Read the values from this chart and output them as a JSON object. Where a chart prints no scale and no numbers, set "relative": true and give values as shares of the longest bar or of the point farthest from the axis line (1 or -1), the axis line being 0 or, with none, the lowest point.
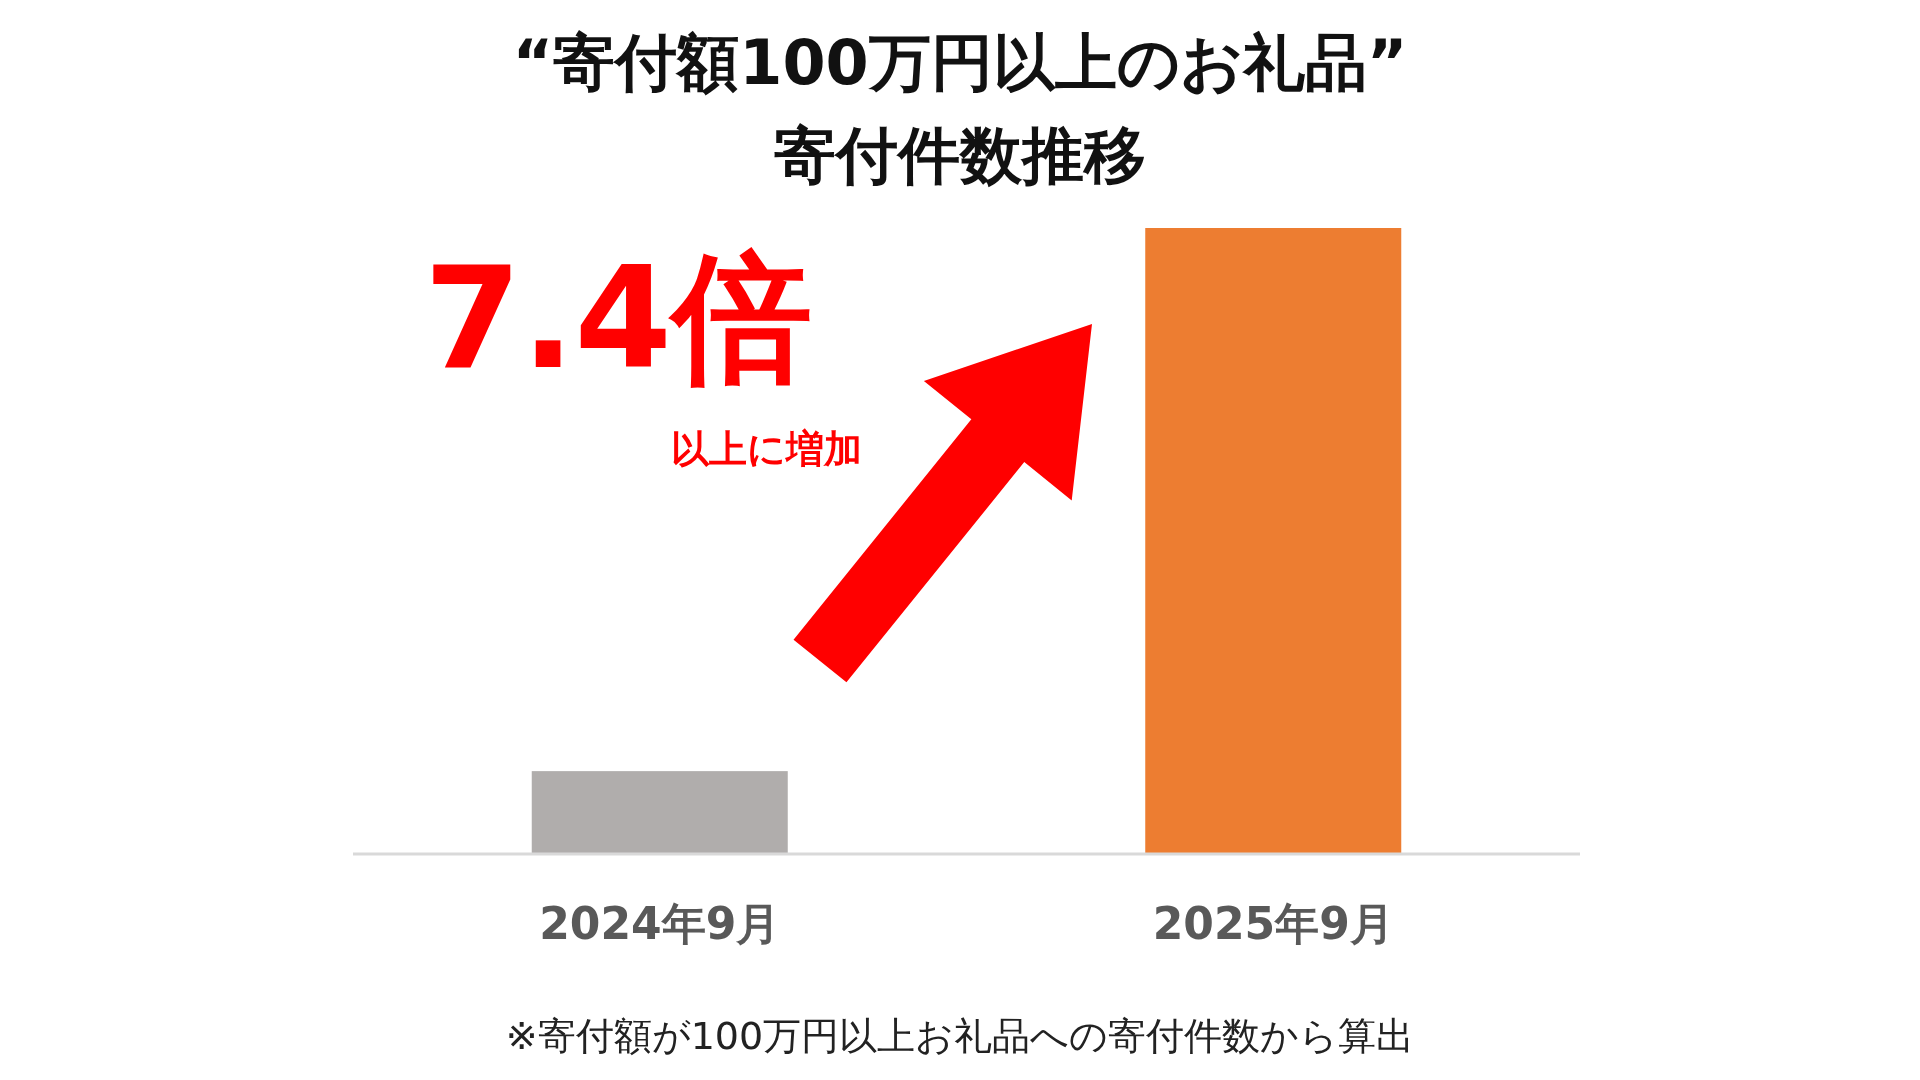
{
  "chart_data": {
    "type": "bar",
    "title": "“寄付額100万円以上のお礼品”",
    "subtitle": "寄付件数推移",
    "categories": [
      "2024年9月",
      "2025年9月"
    ],
    "values": [
      0.131,
      1
    ],
    "colors": [
      "#b0adac",
      "#ed7d31"
    ],
    "relative": true,
    "annotations": [
      "7.4倍",
      "以上に増加",
      "※寄付額が100万円以上お礼品への寄付件数から算出"
    ]
  }
}
